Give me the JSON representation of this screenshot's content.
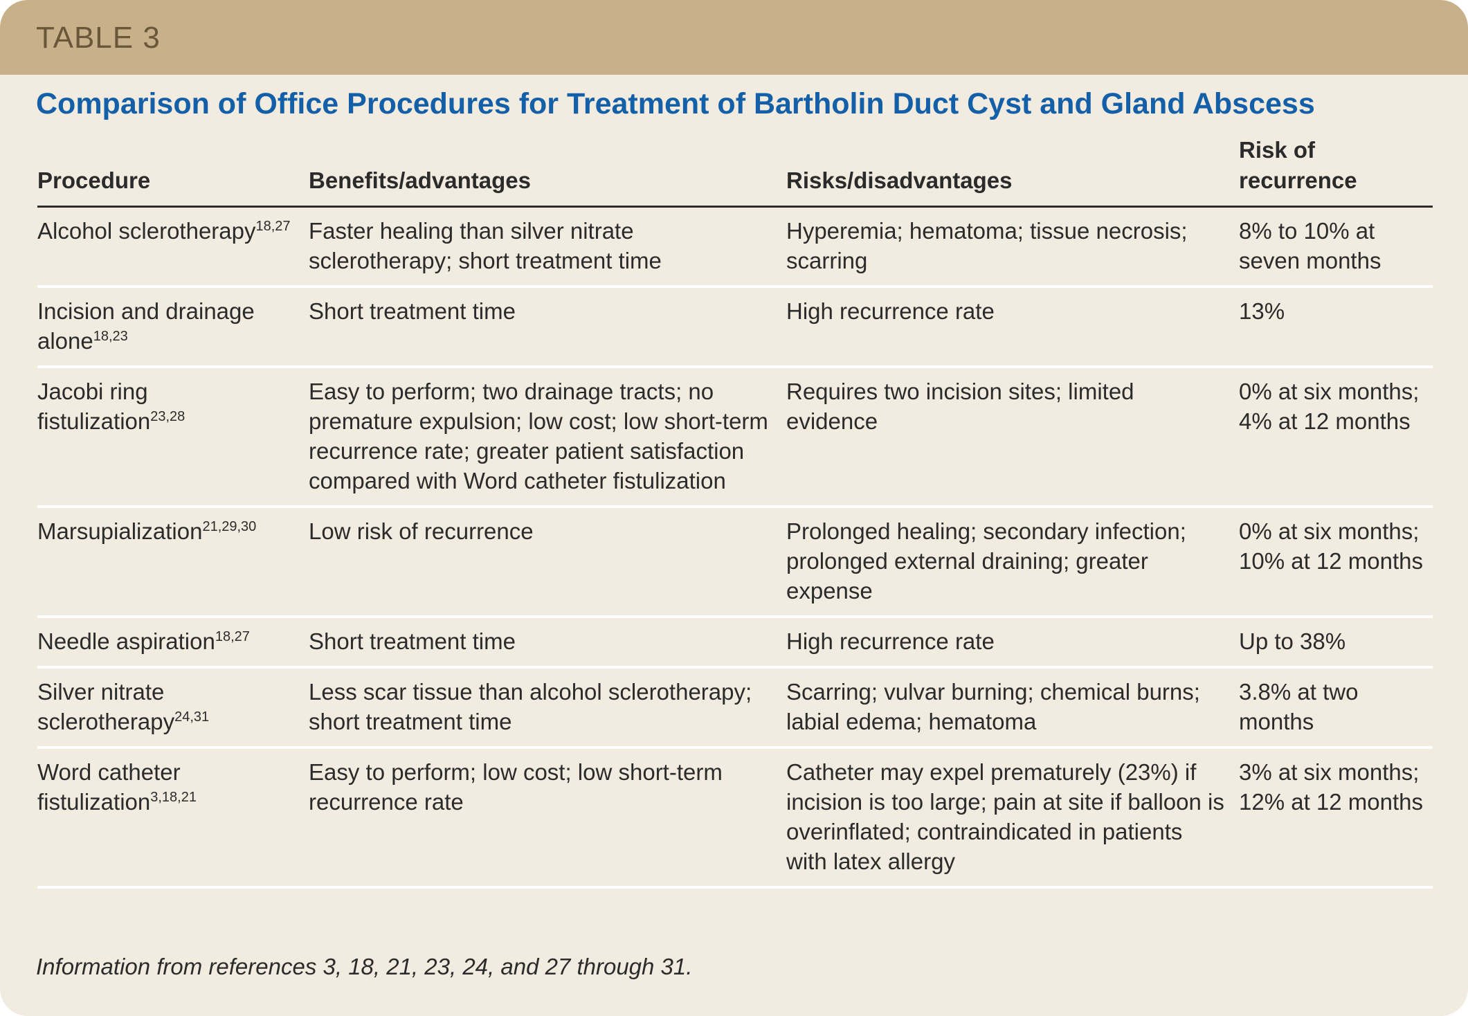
{
  "header": {
    "label": "TABLE 3"
  },
  "title": "Comparison of Office Procedures for Treatment of Bartholin Duct Cyst and Gland Abscess",
  "table": {
    "columns": [
      "Procedure",
      "Benefits/advantages",
      "Risks/disadvantages",
      "Risk of recurrence"
    ],
    "rows": [
      {
        "procedure": "Alcohol sclerotherapy",
        "refs": "18,27",
        "benefits": "Faster healing than silver nitrate sclerotherapy; short treatment time",
        "risks": "Hyperemia; hematoma; tissue necrosis; scarring",
        "recurrence": "8% to 10% at seven months"
      },
      {
        "procedure": "Incision and drainage alone",
        "refs": "18,23",
        "benefits": "Short treatment time",
        "risks": "High recurrence rate",
        "recurrence": "13%"
      },
      {
        "procedure": "Jacobi ring fistulization",
        "refs": "23,28",
        "benefits": "Easy to perform; two drainage tracts; no premature expulsion; low cost; low short-term recurrence rate; greater patient satisfaction compared with Word catheter fistulization",
        "risks": "Requires two incision sites; limited evidence",
        "recurrence": "0% at six months; 4% at 12 months"
      },
      {
        "procedure": "Marsupialization",
        "refs": "21,29,30",
        "benefits": "Low risk of recurrence",
        "risks": "Prolonged healing; secondary infection; prolonged external draining; greater expense",
        "recurrence": "0% at six months; 10% at 12 months"
      },
      {
        "procedure": "Needle aspiration",
        "refs": "18,27",
        "benefits": "Short treatment time",
        "risks": "High recurrence rate",
        "recurrence": "Up to 38%"
      },
      {
        "procedure": "Silver nitrate sclerotherapy",
        "refs": "24,31",
        "benefits": "Less scar tissue than alcohol sclerotherapy; short treatment time",
        "risks": "Scarring; vulvar burning; chemical burns; labial edema; hematoma",
        "recurrence": "3.8% at two months"
      },
      {
        "procedure": "Word catheter fistulization",
        "refs": "3,18,21",
        "benefits": "Easy to perform; low cost; low short-term recurrence rate",
        "risks": "Catheter may expel prematurely (23%) if incision is too large; pain at site if balloon is overinflated; contraindicated in patients with latex allergy",
        "recurrence": "3% at six months; 12% at 12 months"
      }
    ]
  },
  "footnote": "Information from references 3, 18, 21, 23, 24, and 27 through 31."
}
